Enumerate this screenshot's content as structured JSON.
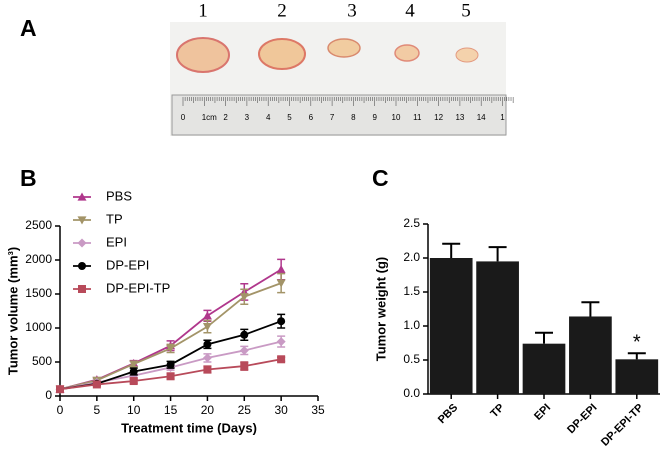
{
  "panel_labels": [
    "A",
    "B",
    "C"
  ],
  "photo": {
    "sample_labels": [
      "1",
      "2",
      "3",
      "4",
      "5"
    ],
    "ruler_labels": [
      "0",
      "1cm",
      "2",
      "3",
      "4",
      "5",
      "6",
      "7",
      "8",
      "9",
      "10",
      "11",
      "12",
      "13",
      "14",
      "1"
    ]
  },
  "chart_data": [
    {
      "type": "line",
      "x_label": "Treatment time (Days)",
      "y_label": "Tumor volume (mm³)",
      "x": [
        0,
        5,
        10,
        15,
        20,
        25,
        30
      ],
      "xlim": [
        0,
        35
      ],
      "xticks": [
        0,
        5,
        10,
        15,
        20,
        25,
        30,
        35
      ],
      "ylim": [
        0,
        2500
      ],
      "yticks": [
        0,
        500,
        1000,
        1500,
        2000,
        2500
      ],
      "legend": "upper left",
      "series": [
        {
          "name": "PBS",
          "color": "#b0378c",
          "marker": "triangle",
          "values": [
            100,
            240,
            480,
            740,
            1180,
            1530,
            1860
          ],
          "errors": [
            20,
            30,
            40,
            70,
            80,
            120,
            150
          ]
        },
        {
          "name": "TP",
          "color": "#a39468",
          "marker": "triangle-down",
          "values": [
            100,
            230,
            470,
            700,
            1020,
            1460,
            1660
          ],
          "errors": [
            20,
            30,
            40,
            60,
            90,
            110,
            140
          ]
        },
        {
          "name": "EPI",
          "color": "#c99ac4",
          "marker": "diamond",
          "values": [
            100,
            200,
            300,
            420,
            560,
            670,
            800
          ],
          "errors": [
            10,
            20,
            30,
            40,
            60,
            60,
            80
          ]
        },
        {
          "name": "DP-EPI",
          "color": "#000000",
          "marker": "circle",
          "values": [
            100,
            180,
            360,
            460,
            760,
            900,
            1100
          ],
          "errors": [
            20,
            30,
            50,
            50,
            60,
            80,
            100
          ]
        },
        {
          "name": "DP-EPI-TP",
          "color": "#b84a5a",
          "marker": "square",
          "values": [
            100,
            170,
            220,
            290,
            390,
            440,
            540
          ],
          "errors": [
            10,
            20,
            30,
            40,
            50,
            60,
            30
          ]
        }
      ]
    },
    {
      "type": "bar",
      "y_label": "Tumor weight (g)",
      "categories": [
        "PBS",
        "TP",
        "EPI",
        "DP-EPI",
        "DP-EPI-TP"
      ],
      "values": [
        2.0,
        1.95,
        0.74,
        1.14,
        0.51
      ],
      "errors": [
        0.21,
        0.21,
        0.16,
        0.21,
        0.09
      ],
      "color": "#1a1a1a",
      "ylim": [
        0,
        2.5
      ],
      "yticks": [
        {
          "value": 0,
          "label": "0.0"
        },
        0.5,
        {
          "value": 1,
          "label": "1.0"
        },
        1.5,
        {
          "value": 2,
          "label": "2.0"
        },
        2.5
      ],
      "annotations": [
        {
          "text": "*",
          "x": "DP-EPI-TP"
        }
      ]
    }
  ]
}
